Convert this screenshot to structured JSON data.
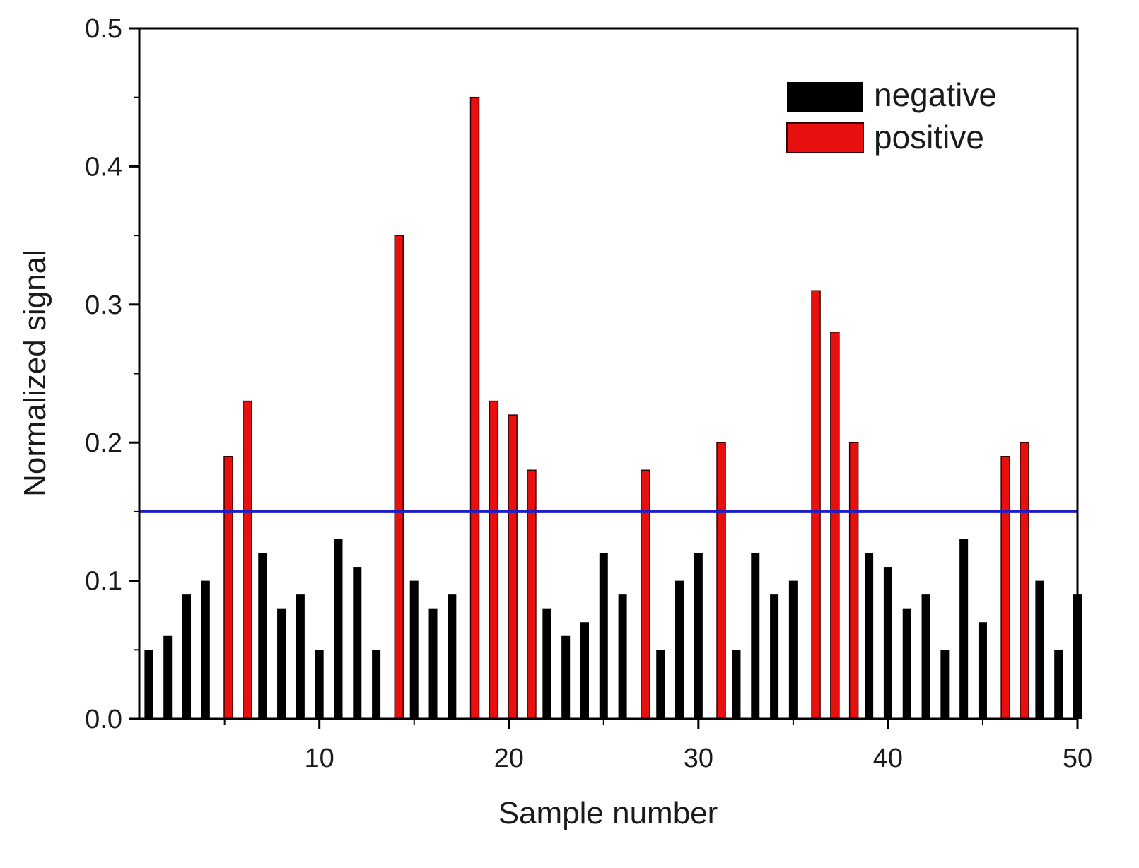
{
  "chart_data": {
    "type": "bar",
    "title": "",
    "xlabel": "Sample number",
    "ylabel": "Normalized signal",
    "xlim": [
      0.5,
      50
    ],
    "ylim": [
      0,
      0.5
    ],
    "x_ticks": [
      10,
      20,
      30,
      40,
      50
    ],
    "y_ticks": [
      "0.0",
      "0.1",
      "0.2",
      "0.3",
      "0.4",
      "0.5"
    ],
    "y_tick_values": [
      0,
      0.1,
      0.2,
      0.3,
      0.4,
      0.5
    ],
    "threshold": 0.15,
    "legend_position": "top-right",
    "series": [
      {
        "name": "negative",
        "color": "#000000",
        "points": [
          {
            "x": 1,
            "y": 0.05
          },
          {
            "x": 2,
            "y": 0.06
          },
          {
            "x": 3,
            "y": 0.09
          },
          {
            "x": 4,
            "y": 0.1
          },
          {
            "x": 7,
            "y": 0.12
          },
          {
            "x": 8,
            "y": 0.08
          },
          {
            "x": 9,
            "y": 0.09
          },
          {
            "x": 10,
            "y": 0.05
          },
          {
            "x": 11,
            "y": 0.13
          },
          {
            "x": 12,
            "y": 0.11
          },
          {
            "x": 13,
            "y": 0.05
          },
          {
            "x": 15,
            "y": 0.1
          },
          {
            "x": 16,
            "y": 0.08
          },
          {
            "x": 17,
            "y": 0.09
          },
          {
            "x": 22,
            "y": 0.08
          },
          {
            "x": 23,
            "y": 0.06
          },
          {
            "x": 24,
            "y": 0.07
          },
          {
            "x": 25,
            "y": 0.12
          },
          {
            "x": 26,
            "y": 0.09
          },
          {
            "x": 28,
            "y": 0.05
          },
          {
            "x": 29,
            "y": 0.1
          },
          {
            "x": 30,
            "y": 0.12
          },
          {
            "x": 32,
            "y": 0.05
          },
          {
            "x": 33,
            "y": 0.12
          },
          {
            "x": 34,
            "y": 0.09
          },
          {
            "x": 35,
            "y": 0.1
          },
          {
            "x": 39,
            "y": 0.12
          },
          {
            "x": 40,
            "y": 0.11
          },
          {
            "x": 41,
            "y": 0.08
          },
          {
            "x": 42,
            "y": 0.09
          },
          {
            "x": 43,
            "y": 0.05
          },
          {
            "x": 44,
            "y": 0.13
          },
          {
            "x": 45,
            "y": 0.07
          },
          {
            "x": 48,
            "y": 0.1
          },
          {
            "x": 49,
            "y": 0.05
          },
          {
            "x": 50,
            "y": 0.09
          }
        ]
      },
      {
        "name": "positive",
        "color": "#e8100e",
        "points": [
          {
            "x": 5.2,
            "y": 0.19
          },
          {
            "x": 6.2,
            "y": 0.23
          },
          {
            "x": 14.2,
            "y": 0.35
          },
          {
            "x": 18.2,
            "y": 0.45
          },
          {
            "x": 19.2,
            "y": 0.23
          },
          {
            "x": 20.2,
            "y": 0.22
          },
          {
            "x": 21.2,
            "y": 0.18
          },
          {
            "x": 27.2,
            "y": 0.18
          },
          {
            "x": 31.2,
            "y": 0.2
          },
          {
            "x": 36.2,
            "y": 0.31
          },
          {
            "x": 37.2,
            "y": 0.28
          },
          {
            "x": 38.2,
            "y": 0.2
          },
          {
            "x": 46.2,
            "y": 0.19
          },
          {
            "x": 47.2,
            "y": 0.2
          }
        ]
      }
    ]
  },
  "colors": {
    "negative": "#000000",
    "positive": "#e8100e",
    "positive_stroke": "#3a0000",
    "threshold": "#1e1ec8",
    "axis": "#000000"
  }
}
